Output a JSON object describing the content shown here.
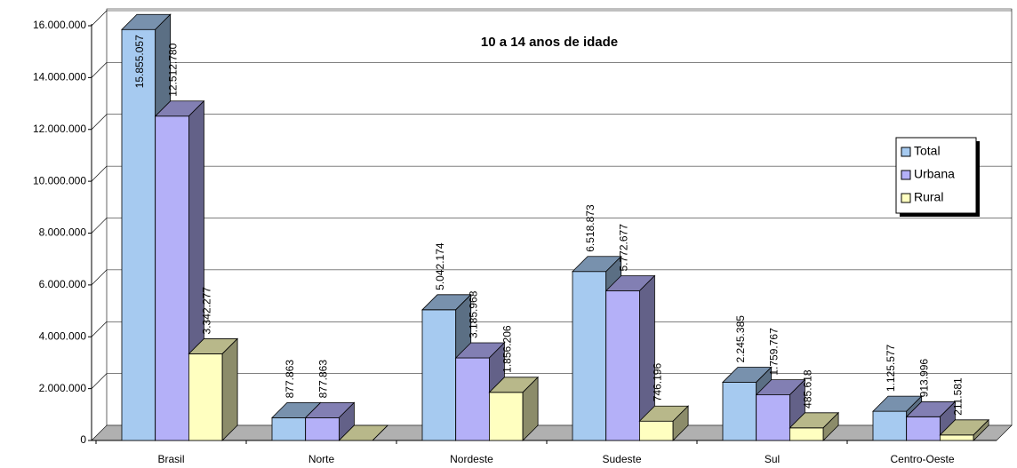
{
  "chart_data": {
    "type": "bar3d",
    "title": "10 a 14 anos de idade",
    "categories": [
      "Brasil",
      "Norte",
      "Nordeste",
      "Sudeste",
      "Sul",
      "Centro-Oeste"
    ],
    "series": [
      {
        "name": "Total",
        "color": "#a6caf0",
        "values": [
          15855057,
          877863,
          5042174,
          6518873,
          2245385,
          1125577
        ],
        "value_labels": [
          "15.855.057",
          "877.863",
          "5.042.174",
          "6.518.873",
          "2.245.385",
          "1.125.577"
        ]
      },
      {
        "name": "Urbana",
        "color": "#b4b0f8",
        "values": [
          12512780,
          877863,
          3185968,
          5772677,
          1759767,
          913996
        ],
        "value_labels": [
          "12.512.780",
          "877.863",
          "3.185.968",
          "5.772.677",
          "1.759.767",
          "913.996"
        ]
      },
      {
        "name": "Rural",
        "color": "#ffffc0",
        "values": [
          3342277,
          0,
          1856206,
          746196,
          485618,
          211581
        ],
        "value_labels": [
          "3.342.277",
          null,
          "1.856.206",
          "746.196",
          "485.618",
          "211.581"
        ]
      }
    ],
    "ylim": [
      0,
      16000000
    ],
    "yticks": [
      {
        "value": 0,
        "label": "0"
      },
      {
        "value": 2000000,
        "label": "2.000.000"
      },
      {
        "value": 4000000,
        "label": "4.000.000"
      },
      {
        "value": 6000000,
        "label": "6.000.000"
      },
      {
        "value": 8000000,
        "label": "8.000.000"
      },
      {
        "value": 10000000,
        "label": "10.000.000"
      },
      {
        "value": 12000000,
        "label": "12.000.000"
      },
      {
        "value": 14000000,
        "label": "14.000.000"
      },
      {
        "value": 16000000,
        "label": "16.000.000"
      }
    ],
    "grid": true,
    "legend": "right"
  }
}
